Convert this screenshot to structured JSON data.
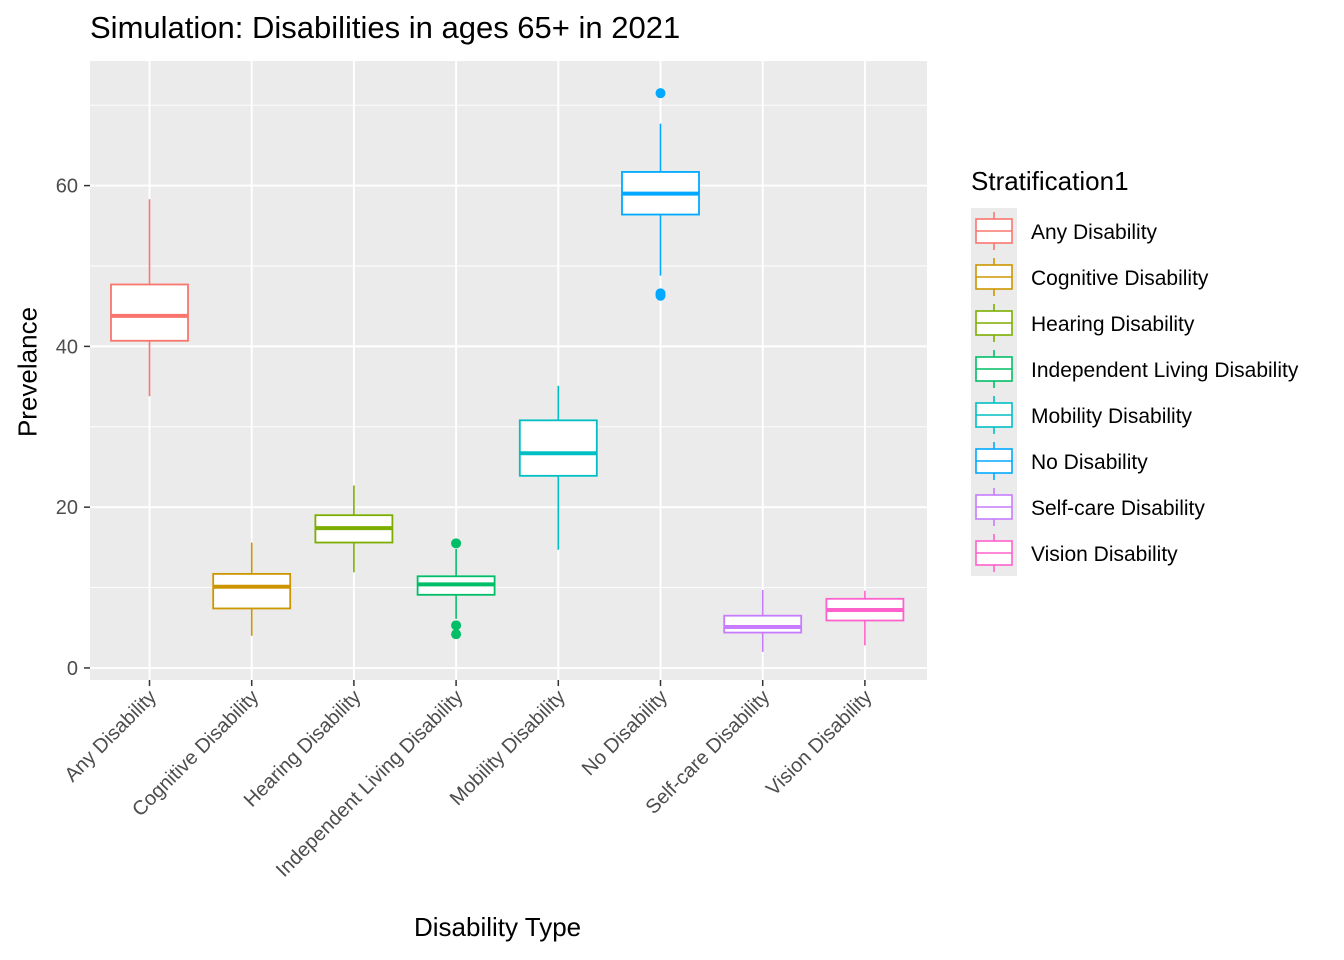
{
  "chart_data": {
    "type": "box",
    "title": "Simulation: Disabilities in ages 65+ in 2021",
    "xlabel": "Disability Type",
    "ylabel": "Prevelance",
    "ylim": [
      -1.5,
      75.5
    ],
    "yticks": [
      0,
      20,
      40,
      60
    ],
    "grid": true,
    "legend": {
      "title": "Stratification1",
      "position": "right"
    },
    "categories": [
      "Any Disability",
      "Cognitive Disability",
      "Hearing Disability",
      "Independent Living Disability",
      "Mobility Disability",
      "No Disability",
      "Self-care Disability",
      "Vision Disability"
    ],
    "series": [
      {
        "name": "Any Disability",
        "color": "#F8766D",
        "min": 33.8,
        "q1": 40.7,
        "median": 43.8,
        "q3": 47.7,
        "max": 58.3,
        "outliers": []
      },
      {
        "name": "Cognitive Disability",
        "color": "#CD9600",
        "min": 4.0,
        "q1": 7.4,
        "median": 10.1,
        "q3": 11.7,
        "max": 15.6,
        "outliers": []
      },
      {
        "name": "Hearing Disability",
        "color": "#7CAE00",
        "min": 11.9,
        "q1": 15.6,
        "median": 17.4,
        "q3": 19.0,
        "max": 22.7,
        "outliers": []
      },
      {
        "name": "Independent Living Disability",
        "color": "#00BE67",
        "min": 6.1,
        "q1": 9.1,
        "median": 10.4,
        "q3": 11.4,
        "max": 14.8,
        "outliers": [
          15.5,
          5.3,
          4.2
        ]
      },
      {
        "name": "Mobility Disability",
        "color": "#00BFC4",
        "min": 14.7,
        "q1": 23.9,
        "median": 26.7,
        "q3": 30.8,
        "max": 35.1,
        "outliers": []
      },
      {
        "name": "No Disability",
        "color": "#00A9FF",
        "min": 48.8,
        "q1": 56.4,
        "median": 59.0,
        "q3": 61.7,
        "max": 67.7,
        "outliers": [
          71.5,
          46.6,
          46.3
        ]
      },
      {
        "name": "Self-care Disability",
        "color": "#C77CFF",
        "min": 2.0,
        "q1": 4.4,
        "median": 5.1,
        "q3": 6.5,
        "max": 9.7,
        "outliers": []
      },
      {
        "name": "Vision Disability",
        "color": "#FF61CC",
        "min": 2.8,
        "q1": 5.9,
        "median": 7.2,
        "q3": 8.6,
        "max": 9.6,
        "outliers": []
      }
    ]
  }
}
